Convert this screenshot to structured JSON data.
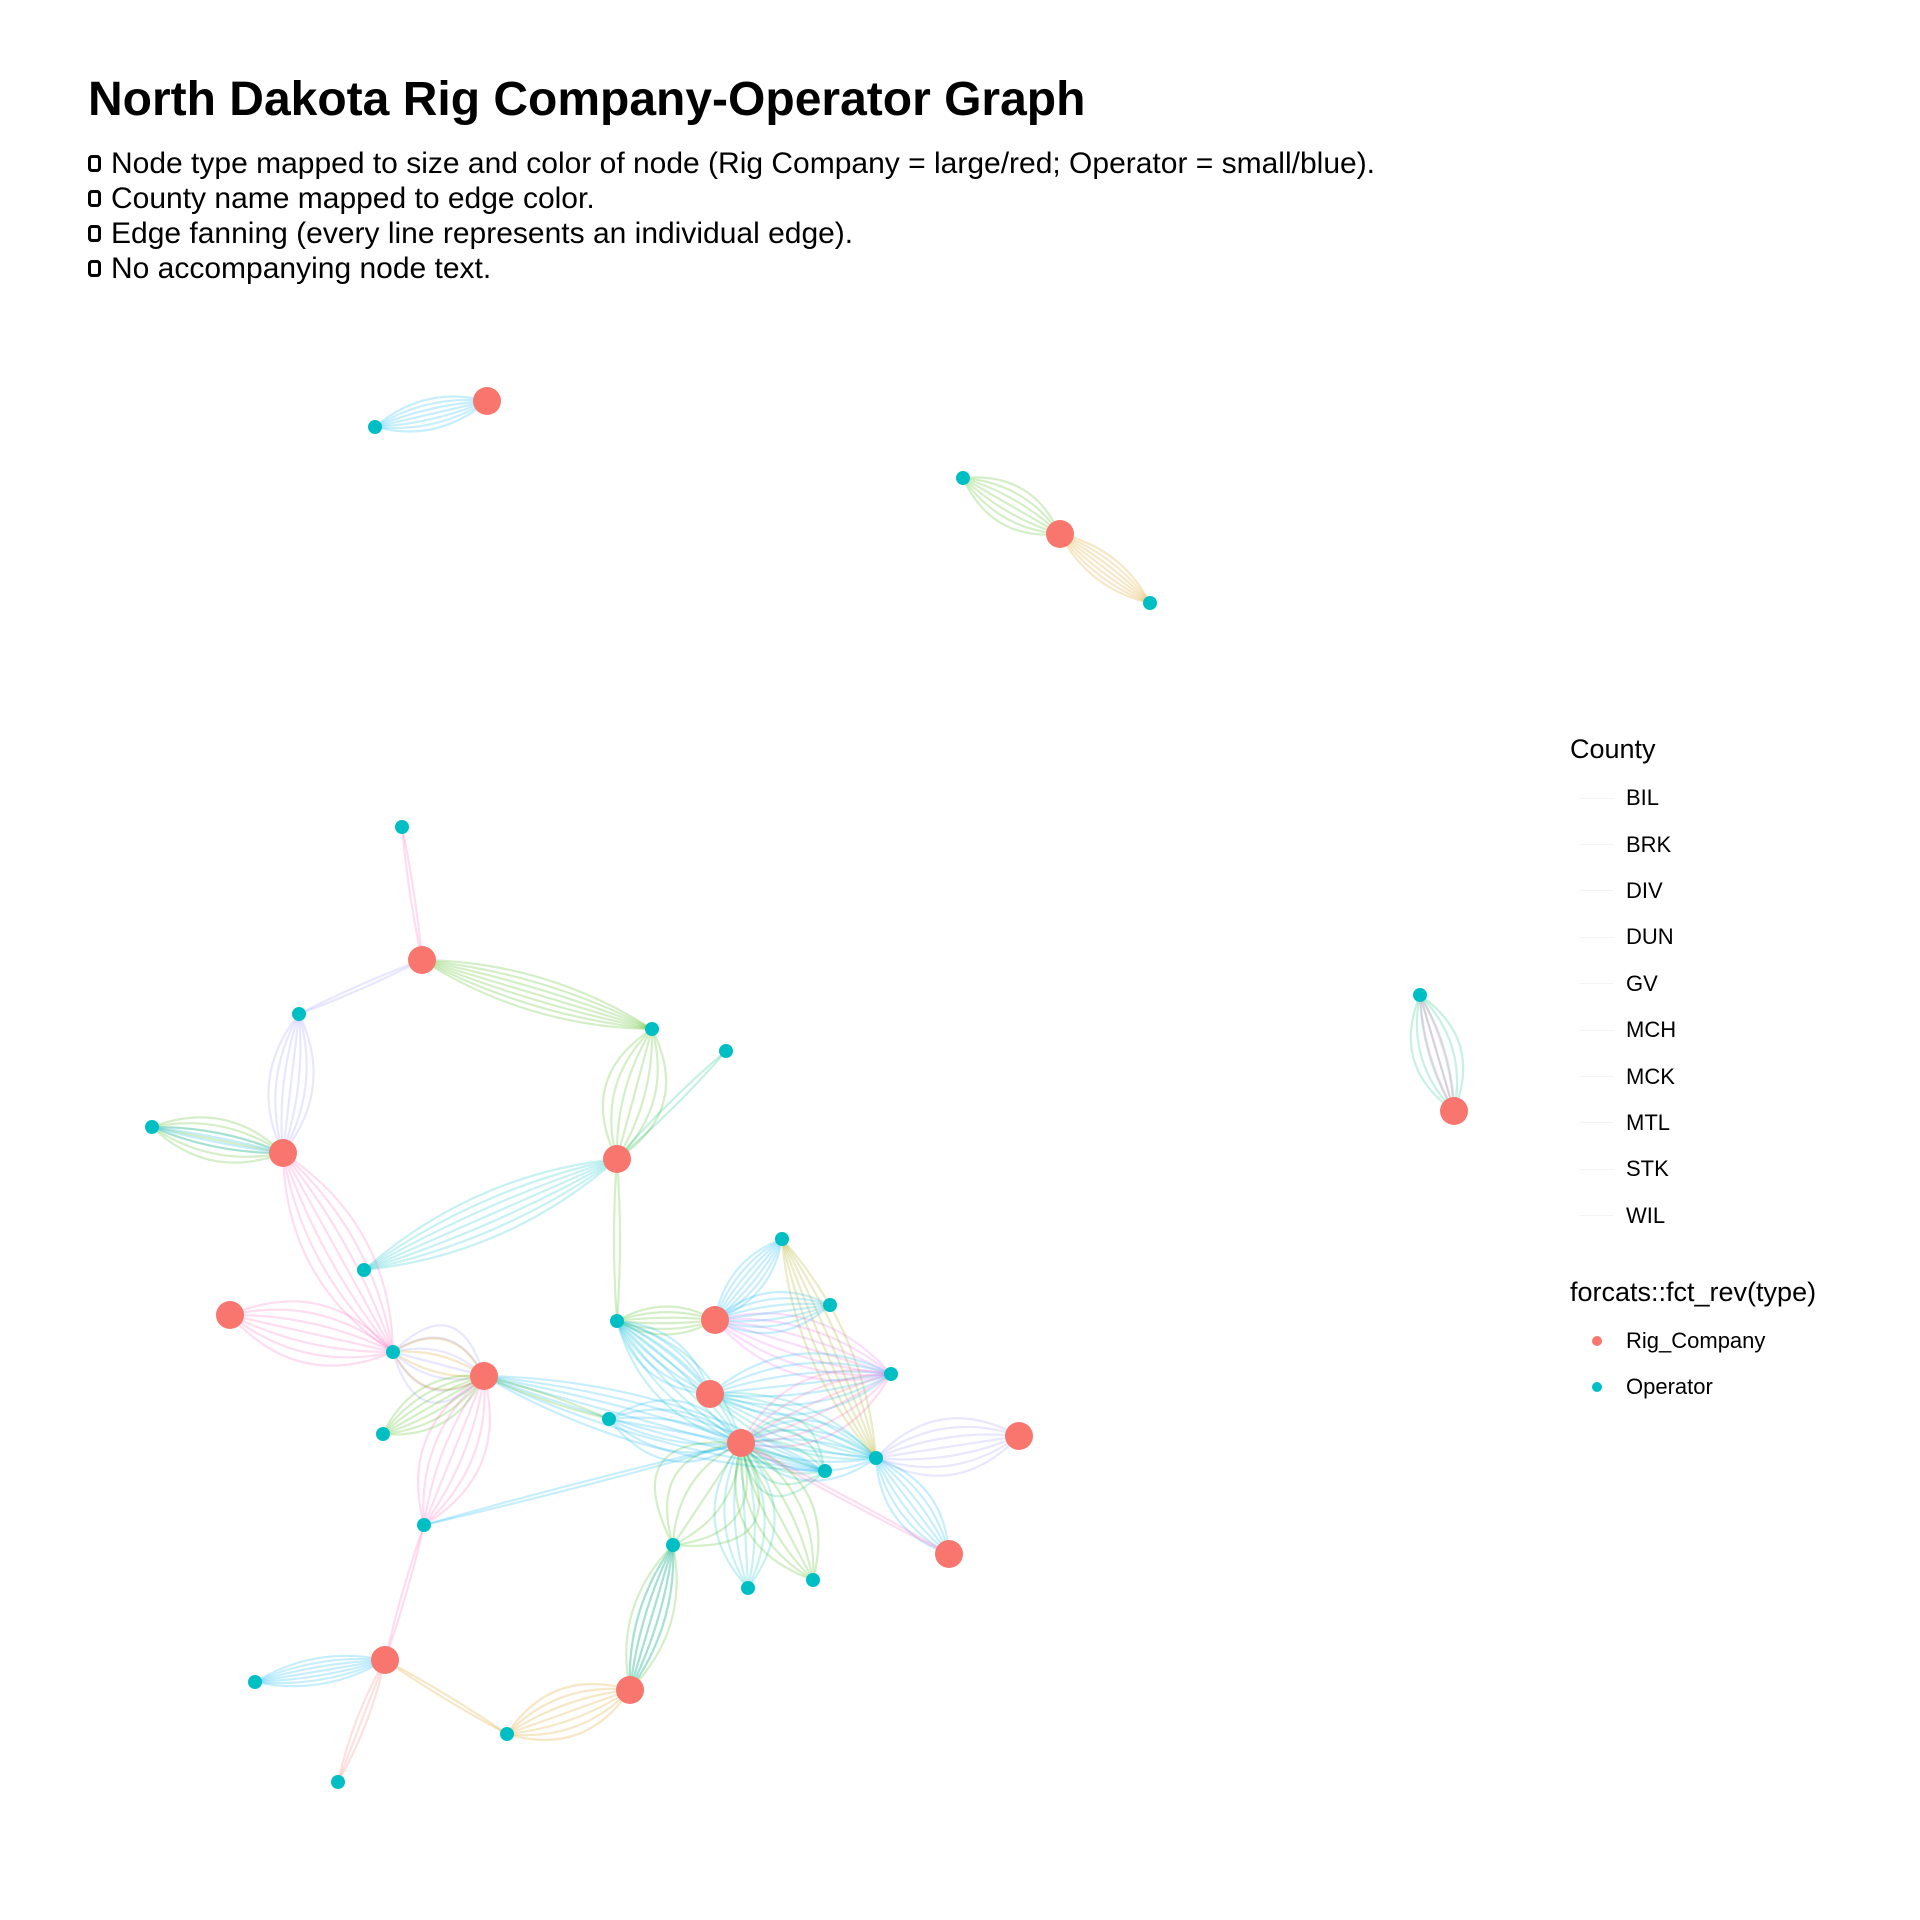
{
  "title": "North Dakota Rig Company-Operator Graph",
  "bullets": [
    "Node type mapped to size and color of node (Rig Company = large/red; Operator = small/blue).",
    "County name mapped to edge color.",
    "Edge fanning (every line represents an individual edge).",
    "No accompanying node text."
  ],
  "legend": {
    "county_title": "County",
    "counties": [
      "BIL",
      "BRK",
      "DIV",
      "DUN",
      "GV",
      "MCH",
      "MCK",
      "MTL",
      "STK",
      "WIL"
    ],
    "type_title": "forcats::fct_rev(type)",
    "types": [
      {
        "label": "Rig_Company",
        "color": "#F8766D"
      },
      {
        "label": "Operator",
        "color": "#00BFC4"
      }
    ]
  },
  "colors": {
    "rig_company": "#F8766D",
    "operator": "#00BFC4",
    "county_palette": {
      "BIL": "#F8766D",
      "BRK": "#D89000",
      "DIV": "#A3A500",
      "DUN": "#39B600",
      "GV": "#00BF7D",
      "MCH": "#00BFC4",
      "MCK": "#00B0F6",
      "MTL": "#9590FF",
      "STK": "#E76BF3",
      "WIL": "#FF62BC"
    }
  }
}
